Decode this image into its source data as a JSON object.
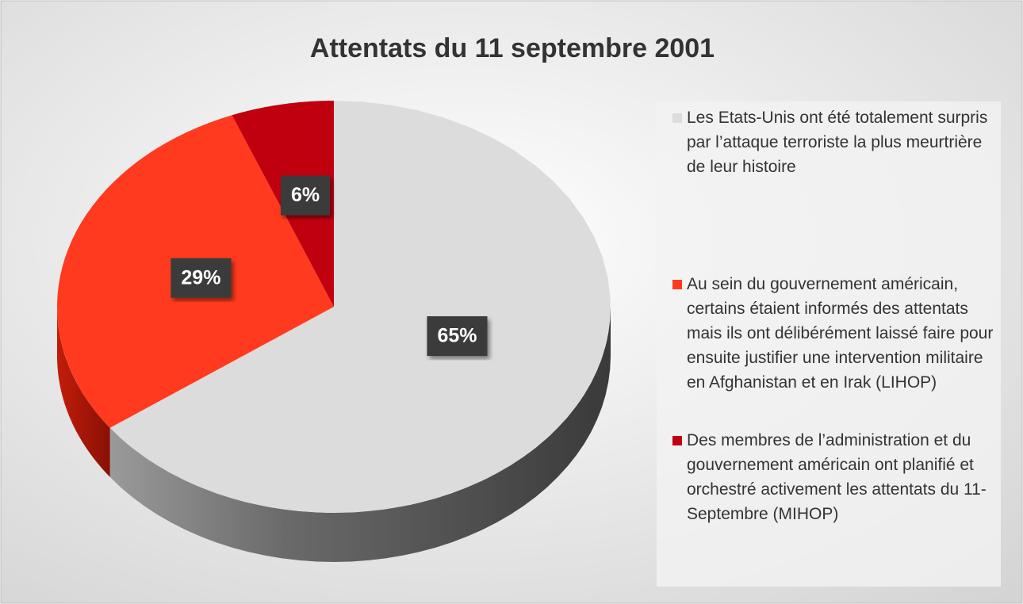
{
  "chart_data": {
    "type": "pie3d",
    "title": "Attentats du 11 septembre 2001",
    "categories": [
      "Les Etats-Unis ont été totalement surpris par l’attaque terroriste la plus meurtrière de leur histoire",
      "Au sein du gouvernement américain, certains étaient informés des attentats mais ils ont délibérément laissé faire pour ensuite justifier une intervention militaire en Afghanistan et en Irak (LIHOP)",
      "Des membres de l’administration et du gouvernement américain ont planifié et orchestré activement les attentats du 11-Septembre (MIHOP)"
    ],
    "values": [
      65,
      29,
      6
    ],
    "value_labels": [
      "65%",
      "29%",
      "6%"
    ],
    "colors": [
      "#dcdcdc",
      "#ff3a1e",
      "#c0000f"
    ],
    "legend": "right"
  }
}
